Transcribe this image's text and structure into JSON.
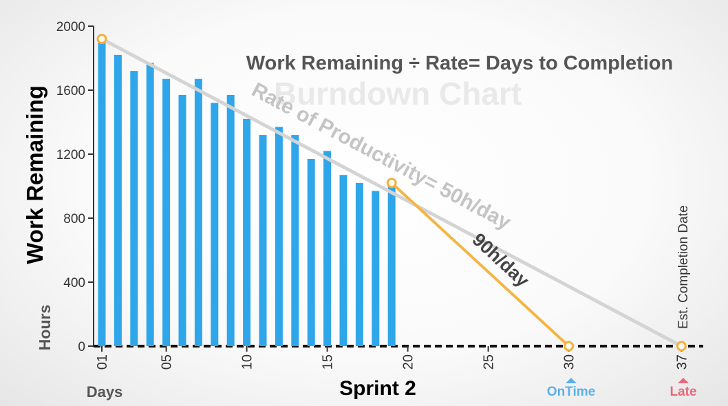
{
  "chart_data": {
    "type": "bar",
    "title": "Burndown Chart",
    "subtitle": "Work Remaining ÷ Rate= Days to Completion",
    "ylabel": "Work Remaining",
    "yunit": "Hours",
    "xlabel": "Sprint 2",
    "xunit": "Days",
    "ylim": [
      0,
      2000
    ],
    "yticks": [
      0,
      400,
      800,
      1200,
      1600,
      2000
    ],
    "xlim": [
      1,
      38
    ],
    "xticks": [
      {
        "x": 1,
        "label": "01"
      },
      {
        "x": 5,
        "label": "05"
      },
      {
        "x": 10,
        "label": "10"
      },
      {
        "x": 15,
        "label": "15"
      },
      {
        "x": 20,
        "label": "20"
      },
      {
        "x": 25,
        "label": "25"
      },
      {
        "x": 30,
        "label": "30"
      },
      {
        "x": 37,
        "label": "37"
      }
    ],
    "days": [
      1,
      2,
      3,
      4,
      5,
      6,
      7,
      8,
      9,
      10,
      11,
      12,
      13,
      14,
      15,
      16,
      17,
      18,
      19
    ],
    "values": [
      1920,
      1820,
      1720,
      1770,
      1670,
      1570,
      1670,
      1520,
      1570,
      1420,
      1320,
      1370,
      1320,
      1170,
      1220,
      1070,
      1020,
      970,
      1020
    ],
    "bar_color": "#2fa6ea",
    "lines": [
      {
        "label": "Rate of Productivity= 50h/day",
        "from": [
          1,
          1920
        ],
        "to": [
          37,
          0
        ],
        "color": "#d4d4d4"
      },
      {
        "label": "90h/day",
        "from": [
          19,
          1020
        ],
        "to": [
          30,
          0
        ],
        "color": "#f5b544"
      }
    ],
    "markers": [
      {
        "x": 1,
        "y": 1920
      },
      {
        "x": 19,
        "y": 1020
      },
      {
        "x": 30,
        "y": 0
      },
      {
        "x": 37,
        "y": 0
      }
    ],
    "marker_color": "#f2b040",
    "annotations": {
      "est_completion": "Est. Completion Date",
      "on_time": "OnTime",
      "on_time_color": "#5ab0ea",
      "late": "Late",
      "late_color": "#e8687c"
    }
  }
}
